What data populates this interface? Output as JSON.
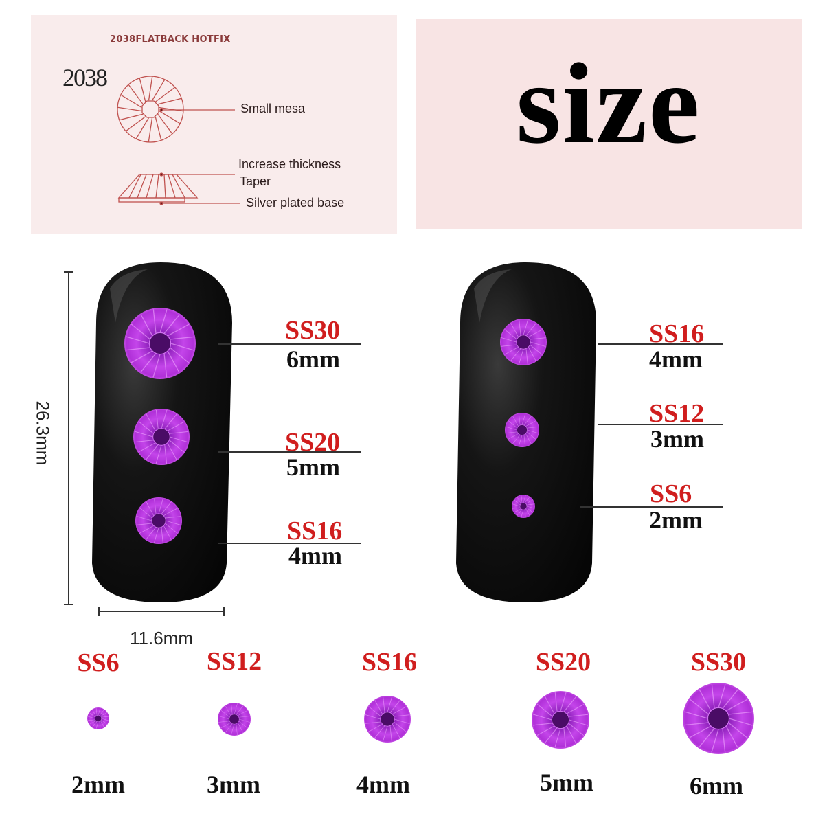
{
  "diagram_panel": {
    "heading": "2038FLATBACK HOTFIX",
    "model": "2038",
    "labels": {
      "small_mesa": "Small mesa",
      "increase_thickness": "Increase thickness",
      "taper": "Taper",
      "silver_base": "Silver plated base"
    },
    "line_color": "#c0524f"
  },
  "title_panel": {
    "title": "size"
  },
  "dimensions": {
    "height": "26.3mm",
    "width": "11.6mm"
  },
  "left_nail": [
    {
      "code": "SS30",
      "size": "6mm"
    },
    {
      "code": "SS20",
      "size": "5mm"
    },
    {
      "code": "SS16",
      "size": "4mm"
    }
  ],
  "right_nail": [
    {
      "code": "SS16",
      "size": "4mm"
    },
    {
      "code": "SS12",
      "size": "3mm"
    },
    {
      "code": "SS6",
      "size": "2mm"
    }
  ],
  "bottom_row": [
    {
      "code": "SS6",
      "size": "2mm"
    },
    {
      "code": "SS12",
      "size": "3mm"
    },
    {
      "code": "SS16",
      "size": "4mm"
    },
    {
      "code": "SS20",
      "size": "5mm"
    },
    {
      "code": "SS30",
      "size": "6mm"
    }
  ],
  "colors": {
    "code_red": "#d01e1e",
    "gem_purple": "#b232d8",
    "nail": "#111111",
    "panel_pink": "#f9ecec"
  }
}
